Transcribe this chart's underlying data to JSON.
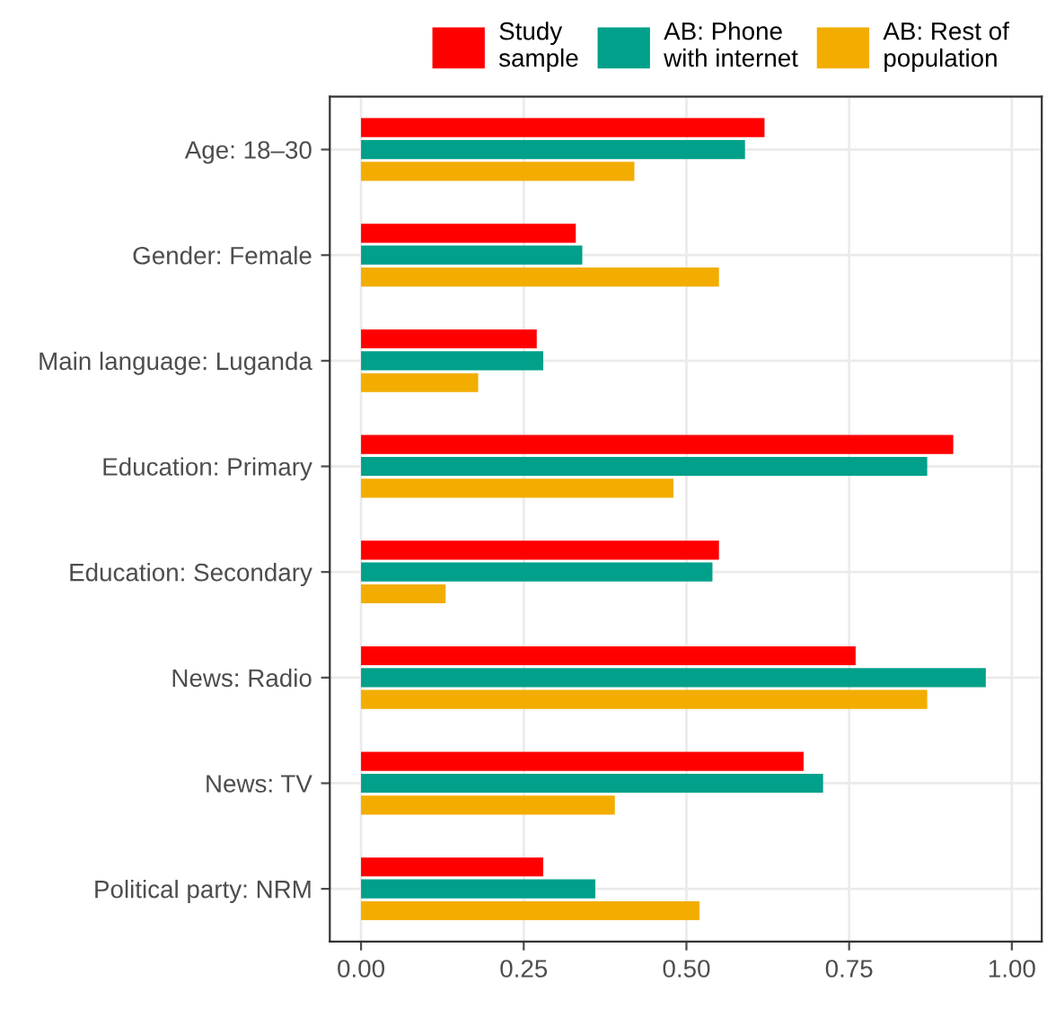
{
  "chart_data": {
    "type": "bar",
    "orientation": "horizontal",
    "categories": [
      "Age: 18–30",
      "Gender: Female",
      "Main language: Luganda",
      "Education: Primary",
      "Education: Secondary",
      "News: Radio",
      "News: TV",
      "Political party: NRM"
    ],
    "series": [
      {
        "name": "Study\nsample",
        "color": "#ff0000",
        "values": [
          0.62,
          0.33,
          0.27,
          0.91,
          0.55,
          0.76,
          0.68,
          0.28
        ]
      },
      {
        "name": "AB: Phone\nwith internet",
        "color": "#00a08a",
        "values": [
          0.59,
          0.34,
          0.28,
          0.87,
          0.54,
          0.96,
          0.71,
          0.36
        ]
      },
      {
        "name": "AB: Rest of\npopulation",
        "color": "#f2ad00",
        "values": [
          0.42,
          0.55,
          0.18,
          0.48,
          0.13,
          0.87,
          0.39,
          0.52
        ]
      }
    ],
    "xlim": [
      -0.048,
      1.046
    ],
    "xticks": [
      {
        "value": 0,
        "label": "0.00"
      },
      {
        "value": 0.25,
        "label": "0.25"
      },
      {
        "value": 0.5,
        "label": "0.50"
      },
      {
        "value": 0.75,
        "label": "0.75"
      },
      {
        "value": 1,
        "label": "1.00"
      }
    ],
    "grid": true,
    "legend": "top"
  }
}
